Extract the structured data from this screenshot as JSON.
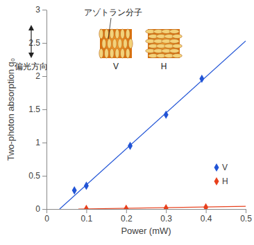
{
  "chart_data": {
    "type": "scatter",
    "x_label": "Power (mW)",
    "y_label": "Two-photon absorption q₀",
    "xlim": [
      0,
      0.5
    ],
    "xticks": [
      0,
      0.1,
      0.2,
      0.3,
      0.4,
      0.5
    ],
    "ylim": [
      0,
      3
    ],
    "yticks": [
      0,
      0.5,
      1,
      1.5,
      2,
      2.5,
      3
    ],
    "grid": false,
    "legend": "right",
    "annotations": [
      "アゾトラン分子",
      "偏光方向",
      "V",
      "H"
    ],
    "series": [
      {
        "name": "V",
        "type": "scatter",
        "marker": "diamond",
        "color": "#2154d6",
        "x": [
          0.07,
          0.1,
          0.21,
          0.3,
          0.39
        ],
        "values": [
          0.28,
          0.35,
          0.95,
          1.42,
          1.96
        ]
      },
      {
        "name": "H",
        "type": "scatter",
        "marker": "diamond",
        "color": "#e8401c",
        "x": [
          0.1,
          0.2,
          0.3,
          0.4
        ],
        "values": [
          0.003,
          0.006,
          0.012,
          0.025
        ]
      },
      {
        "type": "line",
        "line_style": "solid",
        "color": "#2154d6",
        "x": [
          0.033,
          0.5
        ],
        "values": [
          0,
          2.53
        ]
      },
      {
        "type": "line",
        "line_style": "solid",
        "color": "#e8401c",
        "x": [
          0.08,
          0.5
        ],
        "values": [
          0,
          0.04
        ]
      }
    ]
  }
}
